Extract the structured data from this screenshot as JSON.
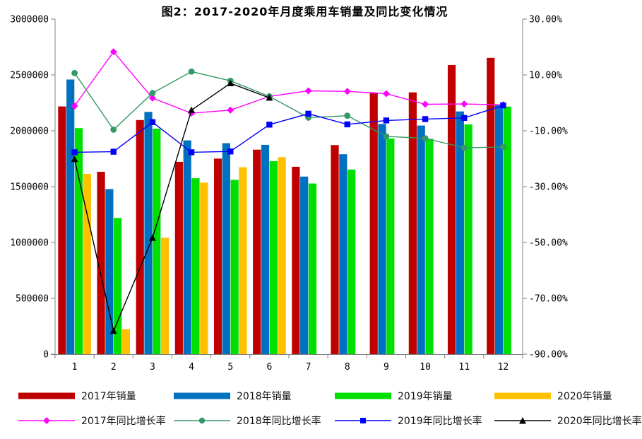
{
  "chart_data": {
    "type": "combo-bar-line",
    "title": "图2：2017-2020年月度乘用车销量及同比变化情况",
    "categories": [
      "1",
      "2",
      "3",
      "4",
      "5",
      "6",
      "7",
      "8",
      "9",
      "10",
      "11",
      "12"
    ],
    "bar_series": [
      {
        "name": "2017年销量",
        "color": "#C00000",
        "values": [
          2218000,
          1633000,
          2096000,
          1722000,
          1751000,
          1831000,
          1678000,
          1872000,
          2343000,
          2344000,
          2589000,
          2653000
        ]
      },
      {
        "name": "2018年销量",
        "color": "#0070C0",
        "values": [
          2459000,
          1478000,
          2169000,
          1914000,
          1889000,
          1874000,
          1590000,
          1790000,
          2061000,
          2047000,
          2173000,
          2233000
        ]
      },
      {
        "name": "2019年销量",
        "color": "#00E000",
        "values": [
          2024000,
          1219000,
          2019000,
          1575000,
          1561000,
          1728000,
          1528000,
          1653000,
          1931000,
          1928000,
          2057000,
          2217000
        ]
      },
      {
        "name": "2020年销量",
        "color": "#FFC000",
        "values": [
          1614000,
          224000,
          1043000,
          1536000,
          1674000,
          1764000,
          null,
          null,
          null,
          null,
          null,
          null
        ]
      }
    ],
    "line_series": [
      {
        "name": "2017年同比增长率",
        "color": "#FF00FF",
        "marker": "diamond",
        "values": [
          -1.1,
          18.3,
          1.7,
          -3.7,
          -2.6,
          2.3,
          4.3,
          4.1,
          3.3,
          -0.5,
          -0.4,
          -0.7
        ]
      },
      {
        "name": "2018年同比增长率",
        "color": "#339966",
        "marker": "circle",
        "values": [
          10.7,
          -9.6,
          3.5,
          11.2,
          7.9,
          2.3,
          -5.3,
          -4.6,
          -12.0,
          -12.7,
          -16.1,
          -15.8
        ]
      },
      {
        "name": "2019年同比增长率",
        "color": "#0000FF",
        "marker": "square",
        "values": [
          -17.7,
          -17.5,
          -6.9,
          -17.7,
          -17.4,
          -7.8,
          -3.9,
          -7.7,
          -6.3,
          -5.8,
          -5.4,
          -0.9
        ]
      },
      {
        "name": "2020年同比增长率",
        "color": "#000000",
        "marker": "triangle",
        "values": [
          -20.2,
          -81.7,
          -48.4,
          -2.6,
          7.0,
          1.8,
          null,
          null,
          null,
          null,
          null,
          null
        ]
      }
    ],
    "left_axis": {
      "min": 0,
      "max": 3000000,
      "tick_labels": [
        "3000000",
        "2500000",
        "2000000",
        "1500000",
        "1000000",
        "500000",
        "0"
      ]
    },
    "right_axis": {
      "min": -90,
      "max": 30,
      "tick_labels": [
        "30.00%",
        "10.00%",
        "-10.00%",
        "-30.00%",
        "-50.00%",
        "-70.00%",
        "-90.00%"
      ]
    },
    "grid": false,
    "legend_position": "bottom",
    "axis_color": "#808080",
    "text_color": "#000000"
  }
}
